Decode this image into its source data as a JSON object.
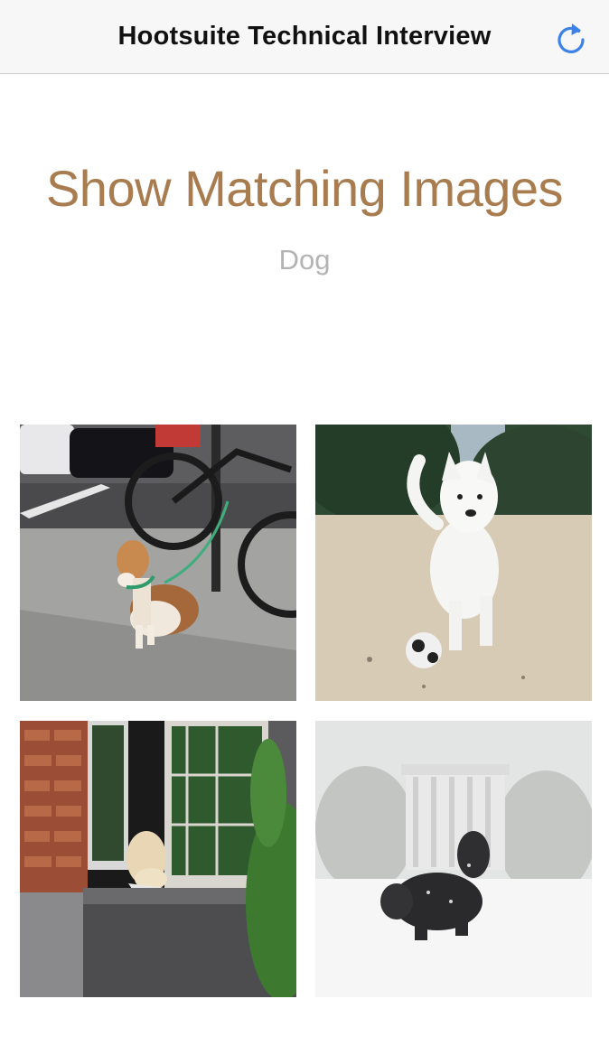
{
  "navbar": {
    "title": "Hootsuite Technical Interview",
    "refresh_icon": "refresh-icon",
    "accent_color": "#3b82e8"
  },
  "header": {
    "title": "Show Matching Images",
    "title_color": "#a87c4f",
    "query": "Dog",
    "query_color": "#b3b3b3"
  },
  "images": [
    {
      "subject": "beagle-on-sidewalk-photo"
    },
    {
      "subject": "white-puppy-with-ball-photo"
    },
    {
      "subject": "dog-in-window-photo"
    },
    {
      "subject": "dog-in-snow-photo"
    }
  ]
}
